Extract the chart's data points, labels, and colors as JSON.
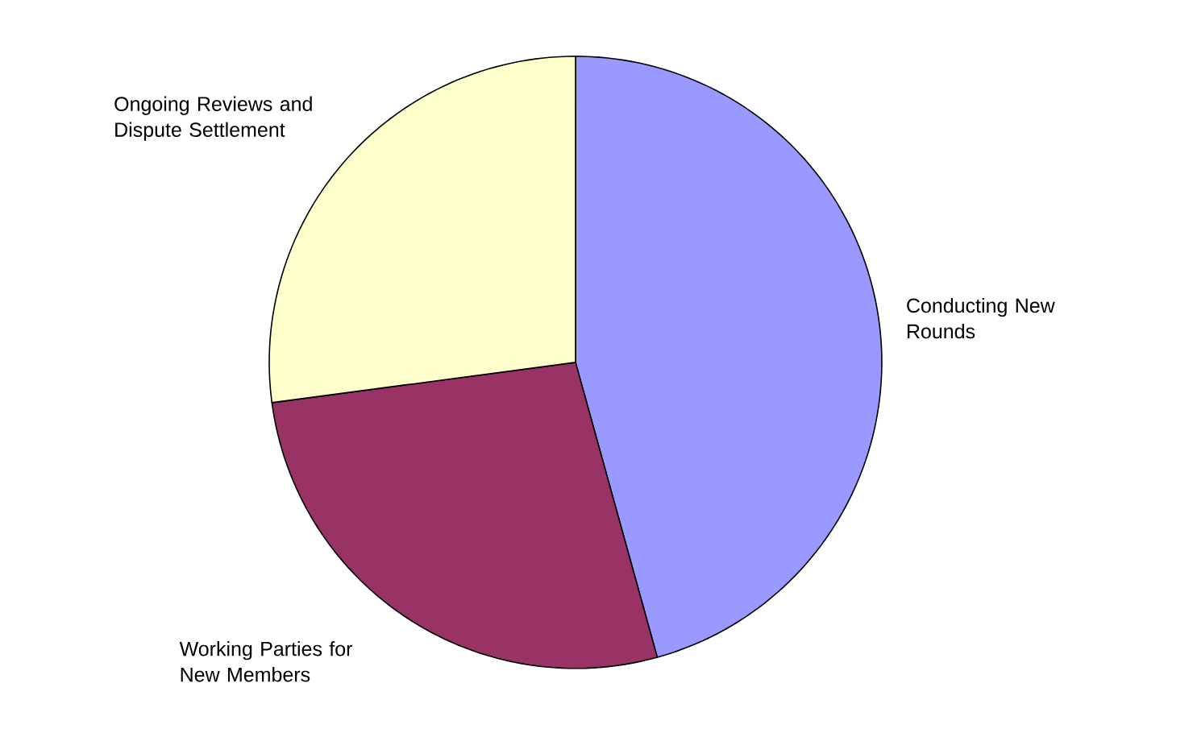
{
  "chart_data": {
    "type": "pie",
    "categories": [
      "Conducting New Rounds",
      "Working Parties for New Members",
      "Ongoing Reviews and Dispute Settlement"
    ],
    "values": [
      45.7,
      27.2,
      27.1
    ],
    "colors": [
      "#9999ff",
      "#993366",
      "#ffffcc"
    ]
  }
}
